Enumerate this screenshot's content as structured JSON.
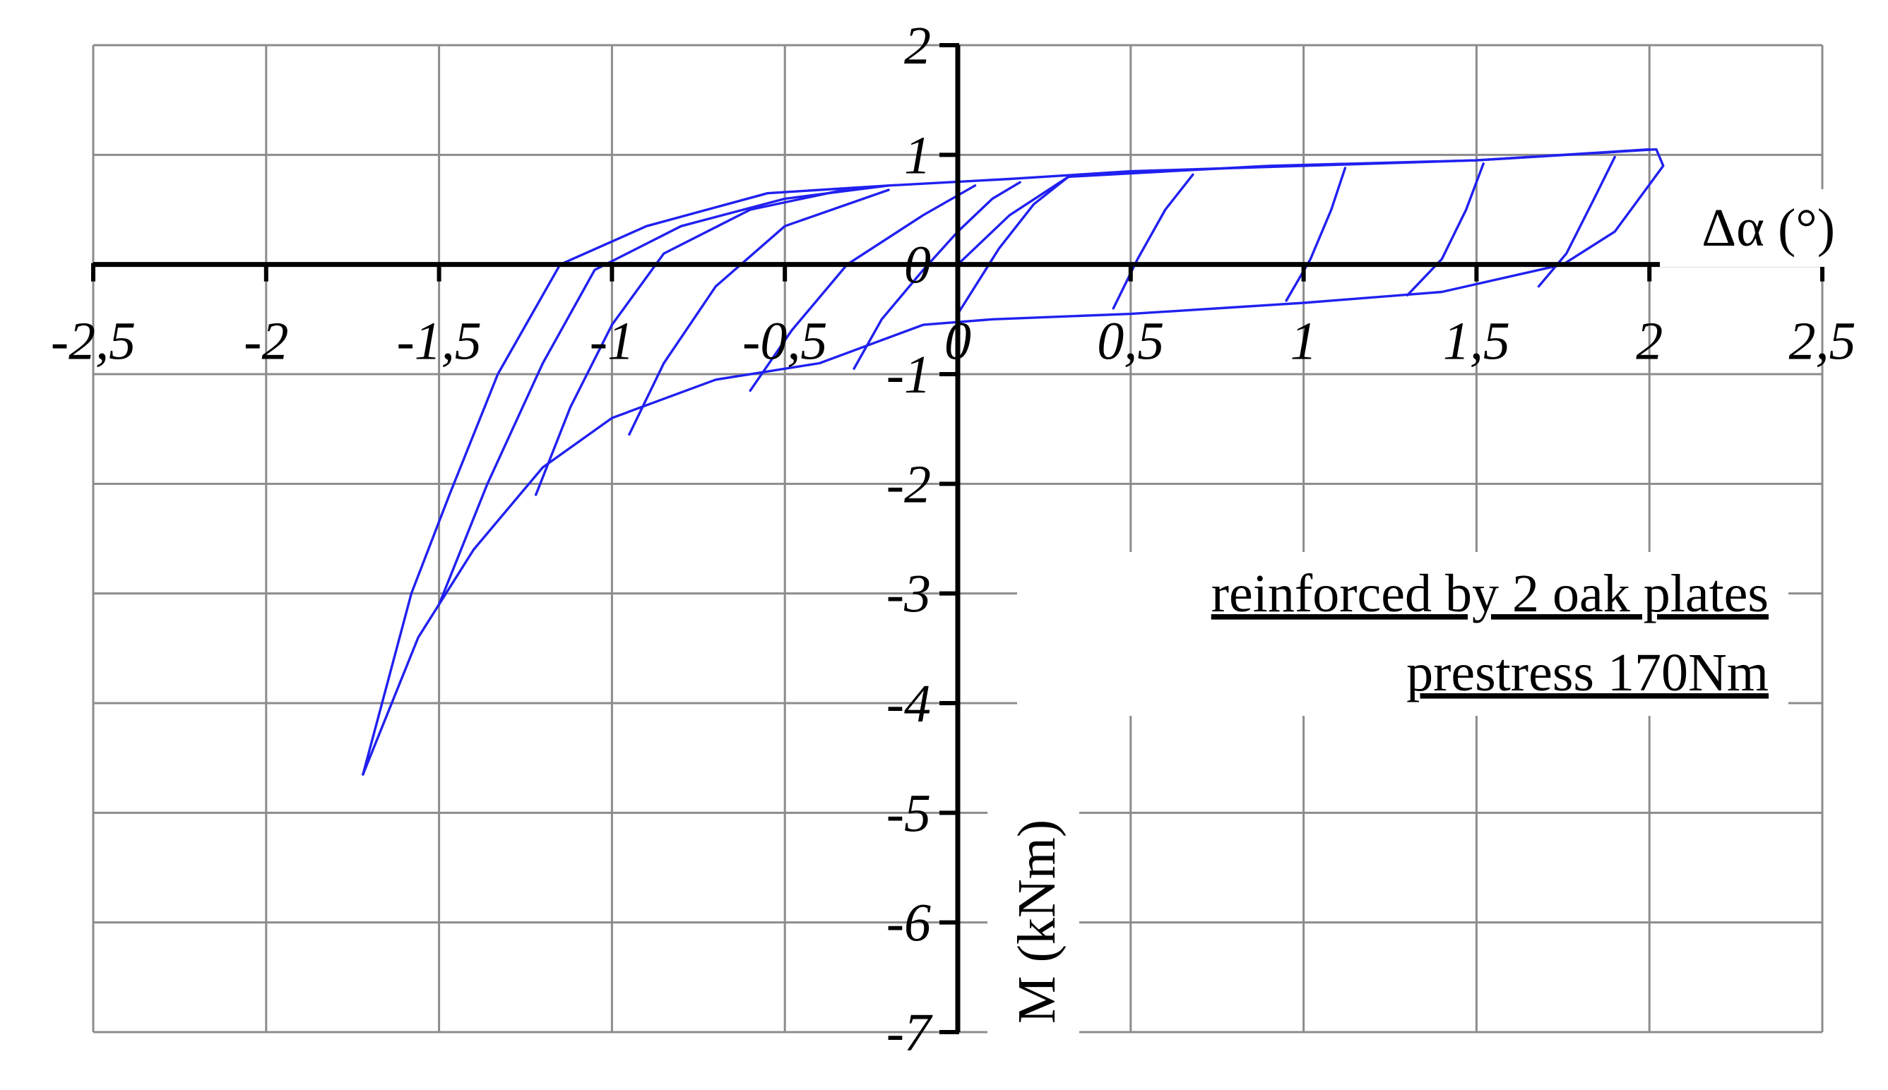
{
  "chart_data": {
    "type": "line",
    "title": "",
    "xlabel": "Δα (°)",
    "ylabel": "M (kNm)",
    "xlim": [
      -2.5,
      2.5
    ],
    "ylim": [
      -7,
      2
    ],
    "grid": true,
    "x_ticks": [
      {
        "value": -2.5,
        "label": "-2,5"
      },
      {
        "value": -2.0,
        "label": "-2"
      },
      {
        "value": -1.5,
        "label": "-1,5"
      },
      {
        "value": -1.0,
        "label": "-1"
      },
      {
        "value": -0.5,
        "label": "-0,5"
      },
      {
        "value": 0.0,
        "label": "0"
      },
      {
        "value": 0.5,
        "label": "0,5"
      },
      {
        "value": 1.0,
        "label": "1"
      },
      {
        "value": 1.5,
        "label": "1,5"
      },
      {
        "value": 2.0,
        "label": "2"
      },
      {
        "value": 2.5,
        "label": "2,5"
      }
    ],
    "y_ticks": [
      {
        "value": 2,
        "label": "2"
      },
      {
        "value": 1,
        "label": "1"
      },
      {
        "value": 0,
        "label": "0"
      },
      {
        "value": -1,
        "label": "-1"
      },
      {
        "value": -2,
        "label": "-2"
      },
      {
        "value": -3,
        "label": "-3"
      },
      {
        "value": -4,
        "label": "-4"
      },
      {
        "value": -5,
        "label": "-5"
      },
      {
        "value": -6,
        "label": "-6"
      },
      {
        "value": -7,
        "label": "-7"
      }
    ],
    "annotations": [
      "reinforced by 2 oak plates",
      "prestress 170Nm"
    ],
    "series_color": "#2020f0",
    "series": [
      {
        "values": [
          [
            0,
            0
          ],
          [
            0.15,
            0.45
          ],
          [
            0.32,
            0.8
          ],
          [
            0.9,
            0.9
          ],
          [
            1.5,
            0.95
          ],
          [
            2.02,
            1.05
          ],
          [
            2.04,
            0.9
          ],
          [
            1.9,
            0.3
          ],
          [
            1.75,
            0.0
          ],
          [
            1.4,
            -0.25
          ],
          [
            1.0,
            -0.35
          ],
          [
            0.5,
            -0.45
          ],
          [
            0.1,
            -0.5
          ],
          [
            -0.1,
            -0.55
          ],
          [
            -0.4,
            -0.9
          ],
          [
            -0.7,
            -1.05
          ],
          [
            -1.0,
            -1.4
          ],
          [
            -1.2,
            -1.85
          ],
          [
            -1.4,
            -2.6
          ],
          [
            -1.56,
            -3.4
          ],
          [
            -1.72,
            -4.65
          ]
        ]
      },
      {
        "values": [
          [
            -1.72,
            -4.65
          ],
          [
            -1.58,
            -3.0
          ],
          [
            -1.47,
            -2.1
          ],
          [
            -1.33,
            -1.0
          ],
          [
            -1.15,
            0.0
          ],
          [
            -0.9,
            0.35
          ],
          [
            -0.55,
            0.65
          ],
          [
            -0.2,
            0.72
          ],
          [
            0.15,
            0.78
          ],
          [
            0.5,
            0.85
          ],
          [
            1.0,
            0.9
          ],
          [
            1.5,
            0.95
          ],
          [
            2.0,
            1.05
          ]
        ]
      },
      {
        "values": [
          [
            -1.5,
            -3.1
          ],
          [
            -1.36,
            -2.0
          ],
          [
            -1.2,
            -0.9
          ],
          [
            -1.05,
            -0.05
          ],
          [
            -0.8,
            0.35
          ],
          [
            -0.5,
            0.6
          ],
          [
            -0.2,
            0.72
          ]
        ]
      },
      {
        "values": [
          [
            -1.22,
            -2.1
          ],
          [
            -1.12,
            -1.3
          ],
          [
            -1.0,
            -0.55
          ],
          [
            -0.85,
            0.1
          ],
          [
            -0.6,
            0.5
          ],
          [
            -0.3,
            0.7
          ]
        ]
      },
      {
        "values": [
          [
            -0.95,
            -1.55
          ],
          [
            -0.85,
            -0.9
          ],
          [
            -0.7,
            -0.2
          ],
          [
            -0.5,
            0.35
          ],
          [
            -0.2,
            0.68
          ]
        ]
      },
      {
        "values": [
          [
            -0.6,
            -1.15
          ],
          [
            -0.48,
            -0.6
          ],
          [
            -0.32,
            0.0
          ],
          [
            -0.1,
            0.45
          ],
          [
            0.05,
            0.72
          ]
        ]
      },
      {
        "values": [
          [
            -0.3,
            -0.95
          ],
          [
            -0.22,
            -0.5
          ],
          [
            -0.1,
            -0.05
          ],
          [
            0.0,
            0.3
          ],
          [
            0.1,
            0.6
          ],
          [
            0.18,
            0.75
          ]
        ]
      },
      {
        "values": [
          [
            0.0,
            -0.45
          ],
          [
            0.12,
            0.15
          ],
          [
            0.22,
            0.55
          ],
          [
            0.32,
            0.8
          ]
        ]
      },
      {
        "values": [
          [
            0.45,
            -0.4
          ],
          [
            0.52,
            0.05
          ],
          [
            0.6,
            0.5
          ],
          [
            0.68,
            0.82
          ]
        ]
      },
      {
        "values": [
          [
            0.95,
            -0.33
          ],
          [
            1.02,
            0.05
          ],
          [
            1.08,
            0.5
          ],
          [
            1.12,
            0.88
          ]
        ]
      },
      {
        "values": [
          [
            1.3,
            -0.28
          ],
          [
            1.4,
            0.05
          ],
          [
            1.47,
            0.5
          ],
          [
            1.52,
            0.92
          ]
        ]
      },
      {
        "values": [
          [
            1.68,
            -0.2
          ],
          [
            1.76,
            0.1
          ],
          [
            1.84,
            0.6
          ],
          [
            1.9,
            0.98
          ]
        ]
      }
    ]
  }
}
